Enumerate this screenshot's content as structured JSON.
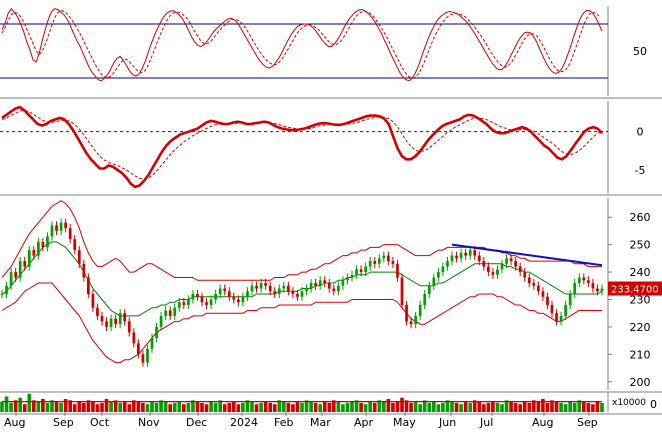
{
  "chart_data": {
    "type": "stock-multi-panel",
    "x_labels": [
      "Aug",
      "Sep",
      "Oct",
      "Nov",
      "Dec",
      "2024",
      "Feb",
      "Mar",
      "Apr",
      "May",
      "Jun",
      "Jul",
      "Aug",
      "Sep"
    ],
    "stochastic": {
      "ylim": [
        0,
        100
      ],
      "ticks": [
        "50"
      ],
      "levels": [
        80,
        20
      ],
      "k": [
        74,
        81,
        92,
        97,
        93,
        88,
        80,
        71,
        60,
        51,
        40,
        38,
        48,
        62,
        75,
        86,
        94,
        97,
        96,
        93,
        90,
        85,
        78,
        70,
        62,
        56,
        48,
        40,
        32,
        26,
        22,
        18,
        17,
        20,
        24,
        30,
        37,
        42,
        44,
        40,
        34,
        28,
        24,
        22,
        24,
        30,
        38,
        48,
        58,
        67,
        75,
        82,
        88,
        92,
        94,
        95,
        93,
        90,
        86,
        80,
        73,
        66,
        60,
        56,
        55,
        57,
        61,
        66,
        71,
        75,
        78,
        81,
        84,
        86,
        86,
        84,
        80,
        74,
        68,
        62,
        56,
        50,
        44,
        39,
        35,
        32,
        31,
        33,
        37,
        42,
        48,
        55,
        62,
        68,
        73,
        77,
        79,
        80,
        80,
        79,
        76,
        72,
        67,
        62,
        58,
        55,
        55,
        58,
        63,
        69,
        76,
        82,
        87,
        91,
        94,
        96,
        96,
        94,
        91,
        87,
        82,
        76,
        70,
        62,
        55,
        47,
        40,
        33,
        26,
        21,
        18,
        17,
        20,
        26,
        34,
        44,
        54,
        63,
        71,
        78,
        84,
        88,
        91,
        93,
        94,
        93,
        92,
        90,
        87,
        84,
        80,
        75,
        70,
        64,
        58,
        52,
        46,
        40,
        35,
        31,
        29,
        30,
        34,
        40,
        47,
        54,
        61,
        66,
        70,
        71,
        70,
        66,
        60,
        52,
        44,
        37,
        31,
        27,
        25,
        26,
        30,
        37,
        46,
        56,
        67,
        77,
        86,
        92,
        95,
        95,
        92,
        87,
        80,
        72
      ],
      "d": [
        70,
        76,
        84,
        90,
        93,
        92,
        88,
        82,
        74,
        66,
        58,
        50,
        46,
        50,
        58,
        68,
        78,
        87,
        93,
        95,
        94,
        91,
        87,
        82,
        76,
        70,
        63,
        56,
        49,
        42,
        35,
        29,
        24,
        21,
        20,
        22,
        26,
        31,
        36,
        40,
        41,
        38,
        34,
        30,
        27,
        26,
        28,
        34,
        42,
        51,
        60,
        69,
        77,
        84,
        89,
        92,
        93,
        93,
        91,
        88,
        84,
        78,
        72,
        66,
        61,
        58,
        58,
        60,
        64,
        69,
        73,
        77,
        80,
        83,
        85,
        85,
        84,
        81,
        77,
        72,
        66,
        60,
        54,
        49,
        44,
        40,
        37,
        35,
        35,
        37,
        41,
        46,
        52,
        58,
        64,
        70,
        74,
        77,
        79,
        79,
        78,
        76,
        73,
        69,
        65,
        61,
        58,
        57,
        58,
        61,
        66,
        72,
        78,
        84,
        89,
        92,
        94,
        94,
        93,
        90,
        86,
        81,
        76,
        70,
        64,
        57,
        50,
        43,
        36,
        30,
        25,
        21,
        20,
        21,
        25,
        31,
        39,
        48,
        57,
        65,
        72,
        78,
        83,
        87,
        90,
        91,
        92,
        91,
        90,
        88,
        85,
        81,
        77,
        72,
        67,
        62,
        56,
        50,
        45,
        40,
        36,
        33,
        32,
        34,
        38,
        44,
        50,
        57,
        63,
        67,
        69,
        69,
        67,
        62,
        56,
        49,
        42,
        36,
        31,
        28,
        27,
        28,
        32,
        39,
        48,
        58,
        68,
        78,
        86,
        91,
        93,
        92,
        89
      ]
    },
    "macd": {
      "ylim": [
        -8,
        4
      ],
      "ticks": [
        "0",
        "-5"
      ],
      "zero_line": 0,
      "macd": [
        1.8,
        2.2,
        2.6,
        3.0,
        3.2,
        2.8,
        2.2,
        1.6,
        1.0,
        0.8,
        1.0,
        1.4,
        1.6,
        1.8,
        1.6,
        1.0,
        0.2,
        -0.8,
        -1.8,
        -2.8,
        -3.6,
        -4.2,
        -4.8,
        -4.8,
        -4.4,
        -4.6,
        -5.0,
        -5.4,
        -6.0,
        -6.8,
        -7.2,
        -7.0,
        -6.4,
        -5.6,
        -4.6,
        -3.6,
        -2.6,
        -1.8,
        -1.2,
        -0.8,
        -0.4,
        -0.2,
        0.0,
        0.2,
        0.4,
        0.8,
        1.2,
        1.4,
        1.3,
        1.1,
        1.0,
        1.0,
        1.2,
        1.3,
        1.2,
        1.0,
        1.0,
        1.1,
        1.2,
        1.3,
        1.2,
        0.9,
        0.6,
        0.4,
        0.3,
        0.2,
        0.2,
        0.3,
        0.4,
        0.6,
        0.8,
        1.0,
        1.1,
        1.1,
        1.0,
        0.9,
        0.9,
        1.0,
        1.2,
        1.4,
        1.6,
        1.8,
        2.0,
        2.1,
        2.1,
        2.0,
        1.7,
        1.0,
        -0.6,
        -2.2,
        -3.2,
        -3.6,
        -3.6,
        -3.2,
        -2.6,
        -1.8,
        -1.0,
        -0.4,
        0.2,
        0.7,
        1.0,
        1.2,
        1.4,
        1.6,
        2.0,
        2.2,
        2.1,
        1.8,
        1.4,
        1.0,
        0.4,
        0.0,
        -0.2,
        -0.2,
        0.0,
        0.2,
        0.4,
        0.6,
        0.4,
        0.0,
        -0.6,
        -1.2,
        -1.8,
        -2.2,
        -2.8,
        -3.4,
        -3.6,
        -3.2,
        -2.4,
        -1.6,
        -0.8,
        0.0,
        0.4,
        0.6,
        0.4,
        -0.2
      ],
      "signal": [
        1.6,
        1.8,
        2.1,
        2.4,
        2.7,
        2.8,
        2.6,
        2.3,
        1.9,
        1.5,
        1.3,
        1.2,
        1.3,
        1.4,
        1.5,
        1.4,
        1.1,
        0.6,
        -0.1,
        -0.9,
        -1.7,
        -2.5,
        -3.2,
        -3.7,
        -4.0,
        -4.2,
        -4.4,
        -4.7,
        -5.0,
        -5.4,
        -5.8,
        -6.1,
        -6.2,
        -6.0,
        -5.6,
        -5.0,
        -4.3,
        -3.6,
        -2.9,
        -2.3,
        -1.8,
        -1.3,
        -0.9,
        -0.5,
        -0.2,
        0.1,
        0.4,
        0.7,
        0.9,
        1.0,
        1.0,
        1.0,
        1.1,
        1.1,
        1.2,
        1.1,
        1.1,
        1.1,
        1.1,
        1.2,
        1.2,
        1.1,
        1.0,
        0.8,
        0.6,
        0.5,
        0.4,
        0.3,
        0.4,
        0.4,
        0.5,
        0.7,
        0.8,
        0.9,
        1.0,
        1.0,
        1.0,
        1.0,
        1.0,
        1.1,
        1.2,
        1.4,
        1.6,
        1.7,
        1.9,
        1.9,
        1.9,
        1.7,
        1.3,
        0.6,
        -0.3,
        -1.2,
        -1.9,
        -2.4,
        -2.6,
        -2.5,
        -2.2,
        -1.7,
        -1.2,
        -0.7,
        -0.2,
        0.2,
        0.6,
        0.9,
        1.2,
        1.5,
        1.7,
        1.8,
        1.7,
        1.6,
        1.3,
        1.0,
        0.7,
        0.5,
        0.3,
        0.2,
        0.2,
        0.3,
        0.3,
        0.2,
        0.0,
        -0.4,
        -0.8,
        -1.2,
        -1.6,
        -2.1,
        -2.6,
        -2.9,
        -3.0,
        -2.8,
        -2.4,
        -1.9,
        -1.3,
        -0.7,
        -0.2,
        0.0
      ]
    },
    "price": {
      "ylim": [
        197,
        267
      ],
      "ticks": [
        "260",
        "250",
        "240",
        "230",
        "220",
        "210",
        "200"
      ],
      "last_value": "233.4700",
      "close": [
        232,
        235,
        240,
        238,
        244,
        242,
        248,
        246,
        251,
        249,
        253,
        257,
        255,
        258,
        256,
        252,
        248,
        243,
        238,
        232,
        227,
        224,
        222,
        220,
        223,
        221,
        225,
        222,
        218,
        214,
        210,
        207,
        212,
        216,
        220,
        224,
        226,
        224,
        227,
        229,
        228,
        230,
        232,
        231,
        229,
        228,
        230,
        232,
        234,
        233,
        231,
        230,
        229,
        231,
        233,
        235,
        234,
        236,
        235,
        233,
        232,
        234,
        235,
        233,
        232,
        231,
        233,
        234,
        236,
        235,
        237,
        236,
        234,
        233,
        235,
        237,
        238,
        239,
        241,
        240,
        242,
        244,
        243,
        245,
        246,
        244,
        243,
        238,
        228,
        222,
        221,
        224,
        228,
        232,
        235,
        238,
        240,
        242,
        244,
        246,
        245,
        247,
        246,
        248,
        246,
        244,
        242,
        240,
        239,
        241,
        243,
        245,
        244,
        242,
        240,
        238,
        236,
        235,
        233,
        231,
        228,
        225,
        222,
        224,
        228,
        232,
        236,
        238,
        237,
        236,
        234,
        233,
        234
      ],
      "upper": [
        238,
        240,
        242,
        245,
        248,
        251,
        254,
        256,
        258,
        260,
        262,
        264,
        265,
        266,
        265,
        263,
        260,
        256,
        251,
        247,
        244,
        242,
        242,
        243,
        244,
        245,
        244,
        242,
        240,
        240,
        241,
        242,
        243,
        243,
        242,
        241,
        240,
        239,
        238,
        238,
        238,
        238,
        238,
        237,
        237,
        237,
        237,
        237,
        237,
        237,
        237,
        237,
        237,
        237,
        237,
        237,
        237,
        237,
        237,
        237,
        238,
        238,
        238,
        239,
        239,
        239,
        240,
        240,
        241,
        241,
        242,
        243,
        243,
        244,
        245,
        246,
        246,
        247,
        247,
        248,
        248,
        249,
        249,
        249,
        250,
        250,
        250,
        250,
        249,
        248,
        247,
        246,
        246,
        246,
        246,
        247,
        248,
        248,
        249,
        249,
        249,
        249,
        249,
        249,
        249,
        249,
        249,
        248,
        248,
        248,
        247,
        247,
        246,
        246,
        245,
        245,
        244,
        244,
        244,
        244,
        244,
        244,
        244,
        244,
        244,
        244,
        243,
        243,
        243,
        242,
        242,
        242,
        242
      ],
      "lower": [
        226,
        227,
        228,
        229,
        231,
        233,
        234,
        235,
        236,
        236,
        236,
        236,
        234,
        232,
        230,
        228,
        226,
        224,
        221,
        218,
        215,
        213,
        211,
        209,
        208,
        207,
        207,
        208,
        208,
        209,
        210,
        212,
        214,
        216,
        218,
        219,
        220,
        221,
        222,
        222,
        223,
        223,
        224,
        224,
        224,
        225,
        225,
        225,
        225,
        225,
        225,
        225,
        225,
        225,
        226,
        226,
        226,
        227,
        227,
        227,
        227,
        228,
        228,
        228,
        228,
        228,
        228,
        228,
        228,
        229,
        229,
        229,
        229,
        229,
        229,
        229,
        229,
        230,
        230,
        230,
        230,
        230,
        230,
        230,
        230,
        230,
        230,
        229,
        227,
        225,
        223,
        222,
        221,
        221,
        222,
        223,
        224,
        225,
        226,
        227,
        228,
        229,
        230,
        231,
        231,
        232,
        232,
        232,
        232,
        231,
        231,
        230,
        229,
        228,
        228,
        227,
        226,
        226,
        225,
        225,
        224,
        223,
        222,
        222,
        223,
        224,
        225,
        226,
        226,
        226,
        226,
        226,
        226
      ],
      "ma": [
        232,
        233,
        235,
        237,
        239,
        241,
        243,
        245,
        247,
        249,
        250,
        251,
        251,
        250,
        249,
        247,
        245,
        243,
        240,
        237,
        234,
        232,
        230,
        228,
        226,
        225,
        224,
        224,
        224,
        224,
        224,
        225,
        226,
        227,
        227,
        228,
        228,
        229,
        229,
        230,
        230,
        230,
        231,
        231,
        231,
        231,
        231,
        231,
        231,
        231,
        231,
        231,
        231,
        231,
        231,
        231,
        232,
        232,
        232,
        232,
        232,
        233,
        233,
        233,
        233,
        233,
        234,
        234,
        234,
        235,
        235,
        236,
        236,
        236,
        237,
        237,
        238,
        238,
        239,
        239,
        239,
        240,
        240,
        240,
        240,
        240,
        240,
        240,
        239,
        238,
        237,
        236,
        235,
        235,
        235,
        235,
        236,
        236,
        237,
        238,
        239,
        240,
        241,
        242,
        243,
        243,
        243,
        243,
        243,
        243,
        243,
        242,
        242,
        241,
        241,
        240,
        240,
        239,
        238,
        237,
        236,
        235,
        234,
        233,
        232,
        232,
        232,
        232,
        232,
        232,
        232,
        232,
        233
      ],
      "trendline": {
        "from": 250.0,
        "to": 242.5
      }
    },
    "volume": {
      "label": "x10000",
      "tick": "0",
      "bars": [
        8,
        12,
        7,
        9,
        11,
        6,
        14,
        9,
        8,
        10,
        7,
        9,
        8,
        7,
        10,
        9,
        6,
        8,
        7,
        9,
        8,
        6,
        7,
        10,
        8,
        9,
        7,
        8,
        6,
        9,
        8,
        7,
        6,
        8,
        7,
        9,
        8,
        6,
        7,
        8,
        6,
        7,
        9,
        8,
        7,
        6,
        8,
        7,
        9,
        6,
        7,
        8,
        6,
        7,
        9,
        8,
        6,
        7,
        8,
        7,
        6,
        9,
        8,
        7,
        6,
        8,
        7,
        9,
        8,
        7,
        6,
        8,
        7,
        9,
        8,
        6,
        7,
        8,
        9,
        7,
        6,
        8,
        7,
        9,
        8,
        10,
        7,
        8,
        11,
        9,
        7,
        8,
        6,
        9,
        7,
        8,
        6,
        7,
        9,
        8,
        7,
        6,
        8,
        7,
        9,
        8,
        6,
        7,
        8,
        7,
        6,
        9,
        8,
        7,
        6,
        8,
        7,
        9,
        8,
        10,
        7,
        9,
        8,
        7,
        6,
        8,
        7,
        9,
        8,
        7,
        6,
        8,
        7
      ],
      "avg": [
        8,
        8,
        8,
        8,
        8,
        8,
        8,
        8,
        8,
        8,
        8,
        8,
        8,
        8,
        8,
        8,
        8,
        8,
        8,
        8,
        8,
        8,
        8,
        8,
        8,
        8,
        8,
        8,
        8,
        8,
        8,
        8,
        8,
        8,
        8,
        8,
        8,
        8,
        8,
        8,
        8,
        8,
        8,
        8,
        8,
        8,
        8,
        8,
        8,
        8,
        8,
        8,
        8,
        8,
        8,
        8,
        8,
        8,
        8,
        8,
        8,
        8,
        8,
        8,
        8,
        8,
        8,
        8,
        8,
        8,
        8,
        8,
        8,
        8,
        8,
        8,
        8,
        8,
        8,
        8,
        8,
        8,
        8,
        8,
        8,
        8,
        8,
        8,
        8,
        8,
        8,
        8,
        8,
        8,
        8,
        8,
        8,
        8,
        8,
        8,
        8,
        8,
        8,
        8,
        8,
        8,
        8,
        8,
        8,
        8,
        8,
        8,
        8,
        8,
        8,
        8,
        8,
        8,
        8,
        8,
        8,
        8,
        8,
        8,
        8,
        8,
        8,
        8,
        8,
        8,
        8,
        8,
        8
      ]
    },
    "colors": {
      "up": "#00a000",
      "down": "#d40000",
      "ma": "#008000",
      "band": "#d40000",
      "signal_line": "#000080",
      "trend": "#1010c0",
      "axis": "#808080",
      "last_bg": "#d40000"
    }
  }
}
